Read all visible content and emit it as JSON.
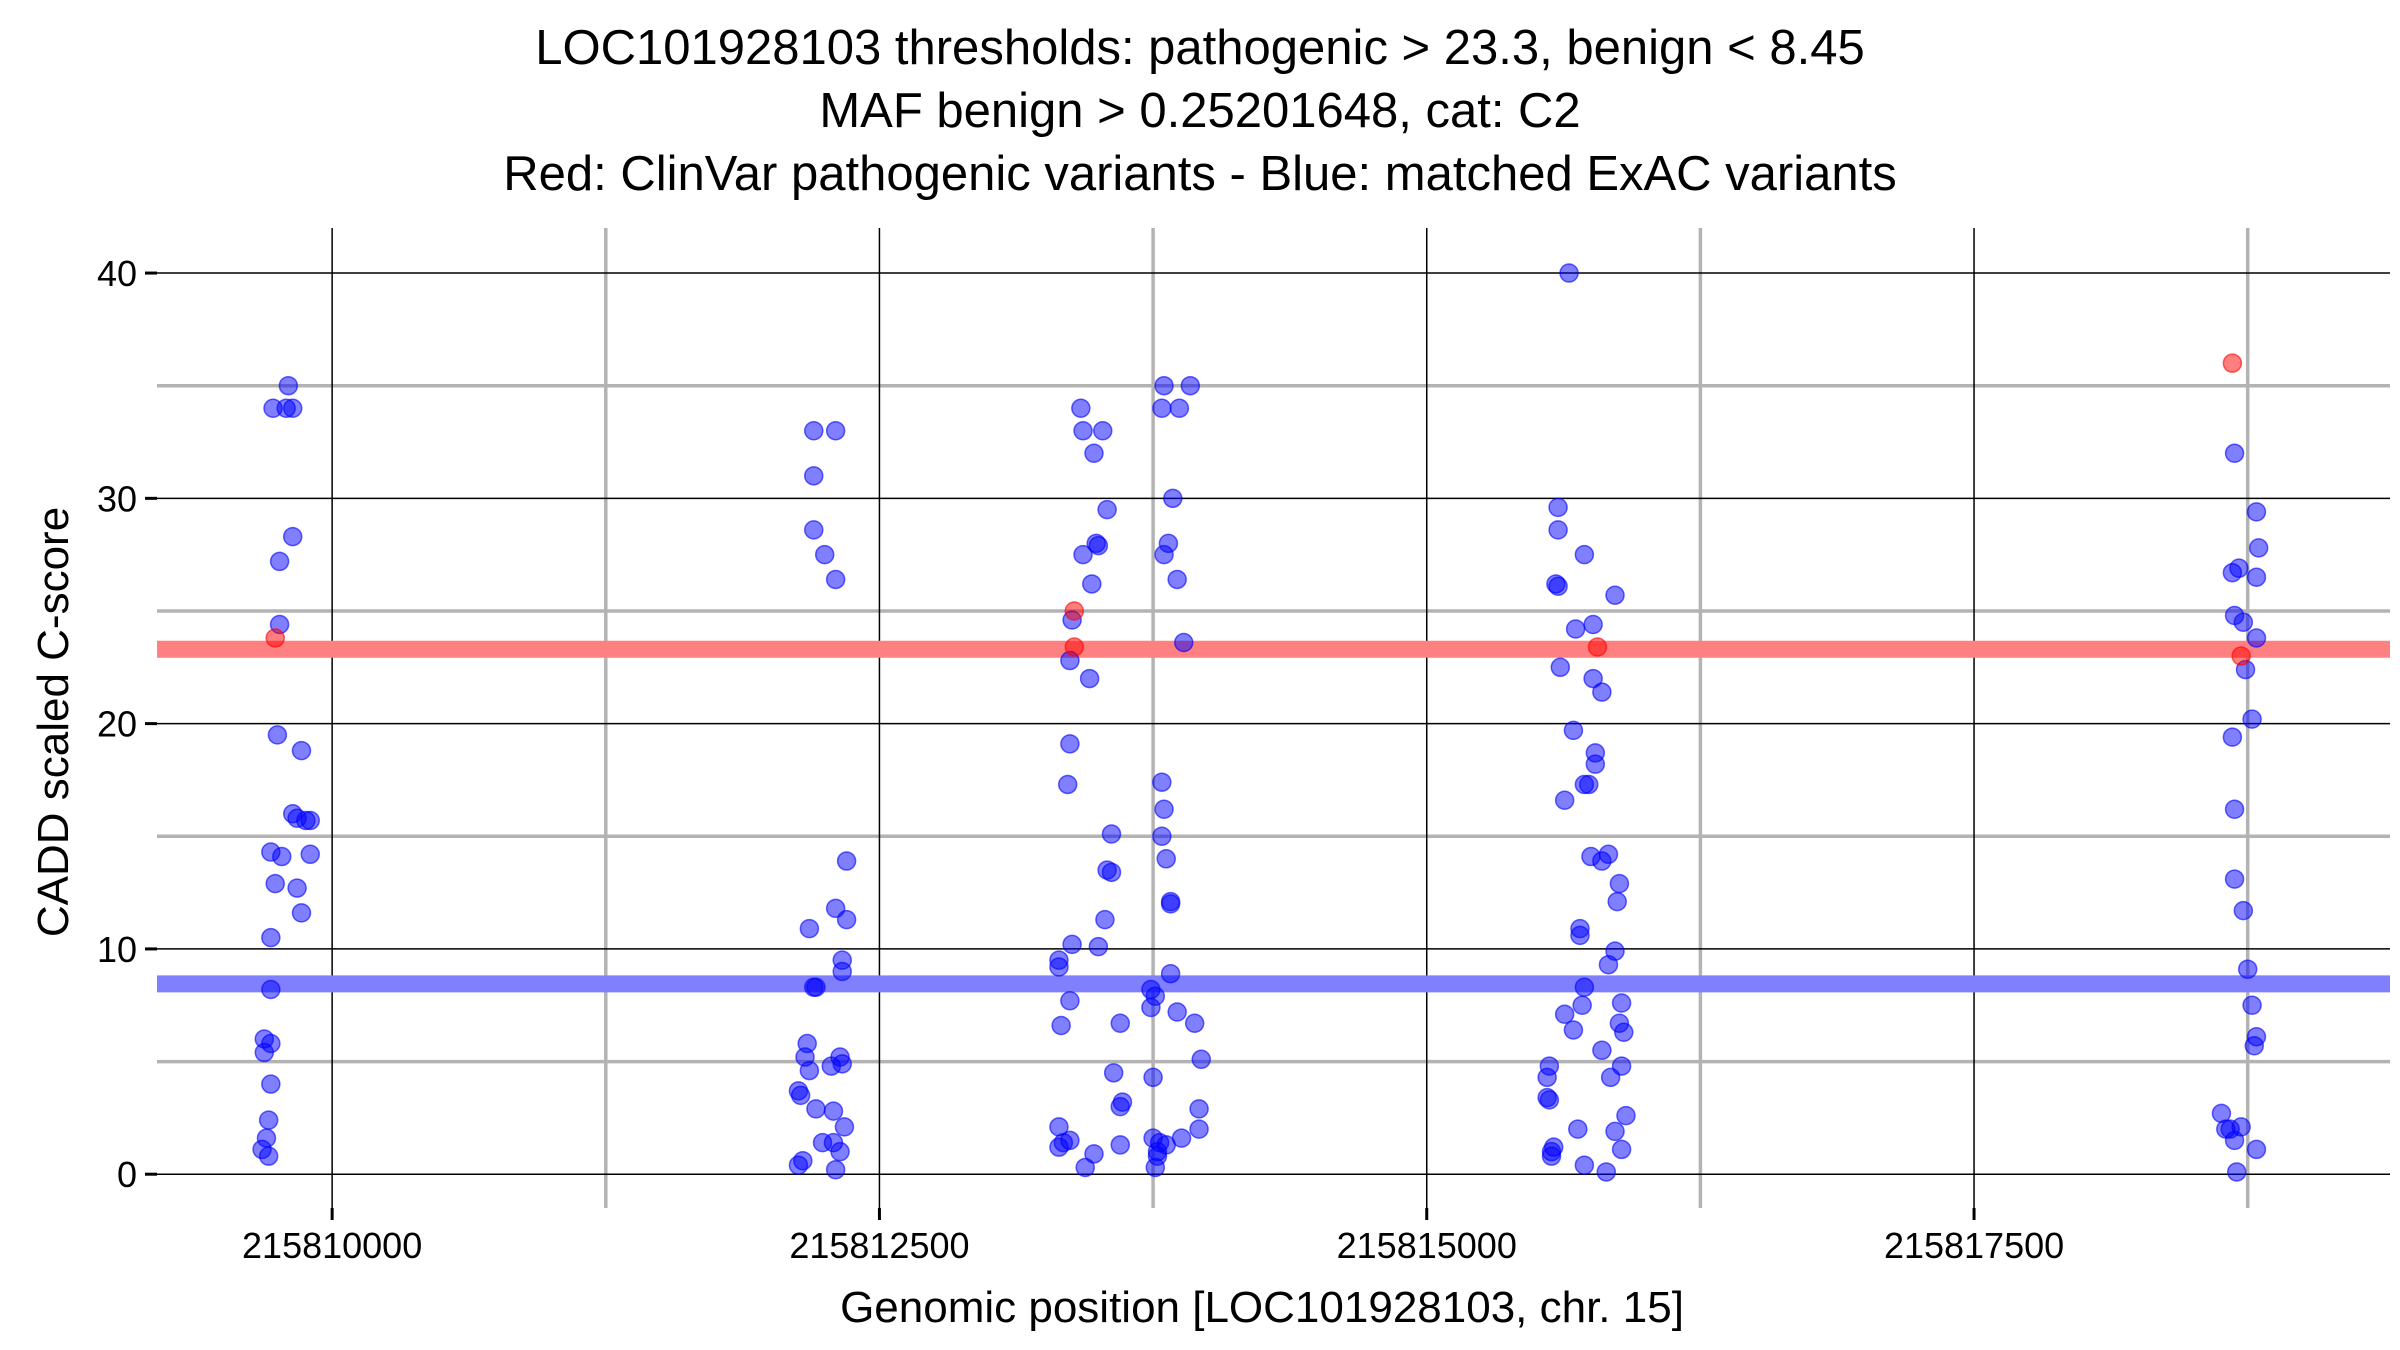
{
  "chart_data": {
    "type": "scatter",
    "title_lines": [
      "LOC101928103 thresholds: pathogenic > 23.3, benign < 8.45",
      "MAF benign > 0.25201648, cat: C2",
      "Red: ClinVar pathogenic variants - Blue: matched ExAC variants"
    ],
    "xlabel": "Genomic position [LOC101928103, chr. 15]",
    "ylabel": "CADD scaled C-score",
    "xlim": [
      215809200,
      215819400
    ],
    "ylim": [
      -1.5,
      42
    ],
    "x_ticks": [
      215810000,
      215812500,
      215815000,
      215817500
    ],
    "x_tick_labels": [
      "215810000",
      "215812500",
      "215815000",
      "215817500"
    ],
    "x_minor_gridlines": [
      215811250,
      215813750,
      215816250,
      215818750
    ],
    "y_ticks": [
      0,
      10,
      20,
      30,
      40
    ],
    "y_tick_labels": [
      "0",
      "10",
      "20",
      "30",
      "40"
    ],
    "y_minor_gridlines": [
      5,
      15,
      25,
      35
    ],
    "thresholds": [
      {
        "name": "pathogenic",
        "value": 23.3,
        "color": "#ff8080"
      },
      {
        "name": "benign",
        "value": 8.45,
        "color": "#8080ff"
      }
    ],
    "series": [
      {
        "name": "ClinVar pathogenic variants",
        "color": "#ff0000",
        "points": [
          [
            215809740,
            23.8
          ],
          [
            215813390,
            25.0
          ],
          [
            215813390,
            23.4
          ],
          [
            215815780,
            23.4
          ],
          [
            215818680,
            36.0
          ],
          [
            215818720,
            23.0
          ]
        ]
      },
      {
        "name": "matched ExAC variants",
        "color": "#0000ff",
        "points": [
          [
            215809800,
            35.0
          ],
          [
            215809730,
            34.0
          ],
          [
            215809790,
            34.0
          ],
          [
            215809820,
            34.0
          ],
          [
            215809820,
            28.3
          ],
          [
            215809760,
            27.2
          ],
          [
            215809760,
            24.4
          ],
          [
            215809750,
            19.5
          ],
          [
            215809860,
            18.8
          ],
          [
            215809820,
            16.0
          ],
          [
            215809840,
            15.8
          ],
          [
            215809880,
            15.7
          ],
          [
            215809900,
            15.7
          ],
          [
            215809720,
            14.3
          ],
          [
            215809770,
            14.1
          ],
          [
            215809900,
            14.2
          ],
          [
            215809740,
            12.9
          ],
          [
            215809840,
            12.7
          ],
          [
            215809860,
            11.6
          ],
          [
            215809720,
            10.5
          ],
          [
            215809720,
            8.2
          ],
          [
            215809690,
            6.0
          ],
          [
            215809720,
            5.8
          ],
          [
            215809690,
            5.4
          ],
          [
            215809720,
            4.0
          ],
          [
            215809710,
            2.4
          ],
          [
            215809700,
            1.6
          ],
          [
            215809680,
            1.1
          ],
          [
            215809710,
            0.8
          ],
          [
            215812200,
            33.0
          ],
          [
            215812300,
            33.0
          ],
          [
            215812200,
            31.0
          ],
          [
            215812200,
            28.6
          ],
          [
            215812250,
            27.5
          ],
          [
            215812300,
            26.4
          ],
          [
            215812350,
            13.9
          ],
          [
            215812300,
            11.8
          ],
          [
            215812180,
            10.9
          ],
          [
            215812350,
            11.3
          ],
          [
            215812330,
            9.5
          ],
          [
            215812330,
            9.0
          ],
          [
            215812200,
            8.3
          ],
          [
            215812210,
            8.3
          ],
          [
            215812170,
            5.8
          ],
          [
            215812160,
            5.2
          ],
          [
            215812320,
            5.2
          ],
          [
            215812330,
            4.9
          ],
          [
            215812280,
            4.8
          ],
          [
            215812180,
            4.6
          ],
          [
            215812130,
            3.7
          ],
          [
            215812140,
            3.5
          ],
          [
            215812210,
            2.9
          ],
          [
            215812290,
            2.8
          ],
          [
            215812340,
            2.1
          ],
          [
            215812240,
            1.4
          ],
          [
            215812290,
            1.4
          ],
          [
            215812320,
            1.0
          ],
          [
            215812150,
            0.6
          ],
          [
            215812130,
            0.4
          ],
          [
            215812300,
            0.2
          ],
          [
            215813420,
            34.0
          ],
          [
            215813520,
            33.0
          ],
          [
            215813430,
            33.0
          ],
          [
            215813480,
            32.0
          ],
          [
            215813540,
            29.5
          ],
          [
            215813490,
            28.0
          ],
          [
            215813500,
            27.9
          ],
          [
            215813430,
            27.5
          ],
          [
            215813470,
            26.2
          ],
          [
            215813380,
            24.6
          ],
          [
            215813370,
            22.8
          ],
          [
            215813460,
            22.0
          ],
          [
            215813370,
            19.1
          ],
          [
            215813360,
            17.3
          ],
          [
            215813560,
            15.1
          ],
          [
            215813540,
            13.5
          ],
          [
            215813560,
            13.4
          ],
          [
            215813530,
            11.3
          ],
          [
            215813380,
            10.2
          ],
          [
            215813500,
            10.1
          ],
          [
            215813320,
            9.5
          ],
          [
            215813320,
            9.2
          ],
          [
            215813370,
            7.7
          ],
          [
            215813600,
            6.7
          ],
          [
            215813330,
            6.6
          ],
          [
            215813570,
            4.5
          ],
          [
            215813610,
            3.2
          ],
          [
            215813600,
            3.0
          ],
          [
            215813320,
            2.1
          ],
          [
            215813340,
            1.4
          ],
          [
            215813370,
            1.5
          ],
          [
            215813320,
            1.2
          ],
          [
            215813480,
            0.9
          ],
          [
            215813600,
            1.3
          ],
          [
            215813440,
            0.3
          ],
          [
            215813800,
            35.0
          ],
          [
            215813920,
            35.0
          ],
          [
            215813790,
            34.0
          ],
          [
            215813870,
            34.0
          ],
          [
            215813840,
            30.0
          ],
          [
            215813820,
            28.0
          ],
          [
            215813800,
            27.5
          ],
          [
            215813860,
            26.4
          ],
          [
            215813890,
            23.6
          ],
          [
            215813790,
            17.4
          ],
          [
            215813800,
            16.2
          ],
          [
            215813790,
            15.0
          ],
          [
            215813810,
            14.0
          ],
          [
            215813830,
            12.1
          ],
          [
            215813830,
            12.0
          ],
          [
            215813830,
            8.9
          ],
          [
            215813740,
            8.2
          ],
          [
            215813760,
            7.9
          ],
          [
            215813740,
            7.4
          ],
          [
            215813860,
            7.2
          ],
          [
            215813940,
            6.7
          ],
          [
            215813970,
            5.1
          ],
          [
            215813750,
            4.3
          ],
          [
            215813960,
            2.9
          ],
          [
            215813960,
            2.0
          ],
          [
            215813750,
            1.6
          ],
          [
            215813780,
            1.4
          ],
          [
            215813810,
            1.3
          ],
          [
            215813880,
            1.6
          ],
          [
            215813770,
            1.0
          ],
          [
            215813770,
            0.8
          ],
          [
            215813760,
            0.3
          ],
          [
            215815650,
            40.0
          ],
          [
            215815600,
            29.6
          ],
          [
            215815600,
            28.6
          ],
          [
            215815720,
            27.5
          ],
          [
            215815600,
            26.1
          ],
          [
            215815590,
            26.2
          ],
          [
            215815860,
            25.7
          ],
          [
            215815760,
            24.4
          ],
          [
            215815680,
            24.2
          ],
          [
            215815610,
            22.5
          ],
          [
            215815760,
            22.0
          ],
          [
            215815800,
            21.4
          ],
          [
            215815670,
            19.7
          ],
          [
            215815770,
            18.7
          ],
          [
            215815770,
            18.2
          ],
          [
            215815740,
            17.3
          ],
          [
            215815720,
            17.3
          ],
          [
            215815630,
            16.6
          ],
          [
            215815750,
            14.1
          ],
          [
            215815830,
            14.2
          ],
          [
            215815800,
            13.9
          ],
          [
            215815880,
            12.9
          ],
          [
            215815870,
            12.1
          ],
          [
            215815700,
            10.9
          ],
          [
            215815700,
            10.6
          ],
          [
            215815860,
            9.9
          ],
          [
            215815830,
            9.3
          ],
          [
            215815720,
            8.3
          ],
          [
            215815710,
            7.5
          ],
          [
            215815890,
            7.6
          ],
          [
            215815630,
            7.1
          ],
          [
            215815880,
            6.7
          ],
          [
            215815900,
            6.3
          ],
          [
            215815670,
            6.4
          ],
          [
            215815800,
            5.5
          ],
          [
            215815890,
            4.8
          ],
          [
            215815560,
            4.8
          ],
          [
            215815550,
            4.3
          ],
          [
            215815840,
            4.3
          ],
          [
            215815550,
            3.4
          ],
          [
            215815560,
            3.3
          ],
          [
            215815910,
            2.6
          ],
          [
            215815690,
            2.0
          ],
          [
            215815860,
            1.9
          ],
          [
            215815580,
            1.2
          ],
          [
            215815570,
            1.0
          ],
          [
            215815570,
            0.8
          ],
          [
            215815890,
            1.1
          ],
          [
            215815720,
            0.4
          ],
          [
            215815820,
            0.1
          ],
          [
            215818690,
            32.0
          ],
          [
            215818790,
            29.4
          ],
          [
            215818800,
            27.8
          ],
          [
            215818680,
            26.7
          ],
          [
            215818710,
            26.9
          ],
          [
            215818790,
            26.5
          ],
          [
            215818690,
            24.8
          ],
          [
            215818730,
            24.5
          ],
          [
            215818790,
            23.8
          ],
          [
            215818740,
            22.4
          ],
          [
            215818770,
            20.2
          ],
          [
            215818680,
            19.4
          ],
          [
            215818690,
            16.2
          ],
          [
            215818690,
            13.1
          ],
          [
            215818730,
            11.7
          ],
          [
            215818750,
            9.1
          ],
          [
            215818770,
            7.5
          ],
          [
            215818790,
            6.1
          ],
          [
            215818780,
            5.7
          ],
          [
            215818630,
            2.7
          ],
          [
            215818650,
            2.0
          ],
          [
            215818670,
            2.0
          ],
          [
            215818720,
            2.1
          ],
          [
            215818690,
            1.5
          ],
          [
            215818790,
            1.1
          ],
          [
            215818700,
            0.1
          ]
        ]
      }
    ]
  }
}
